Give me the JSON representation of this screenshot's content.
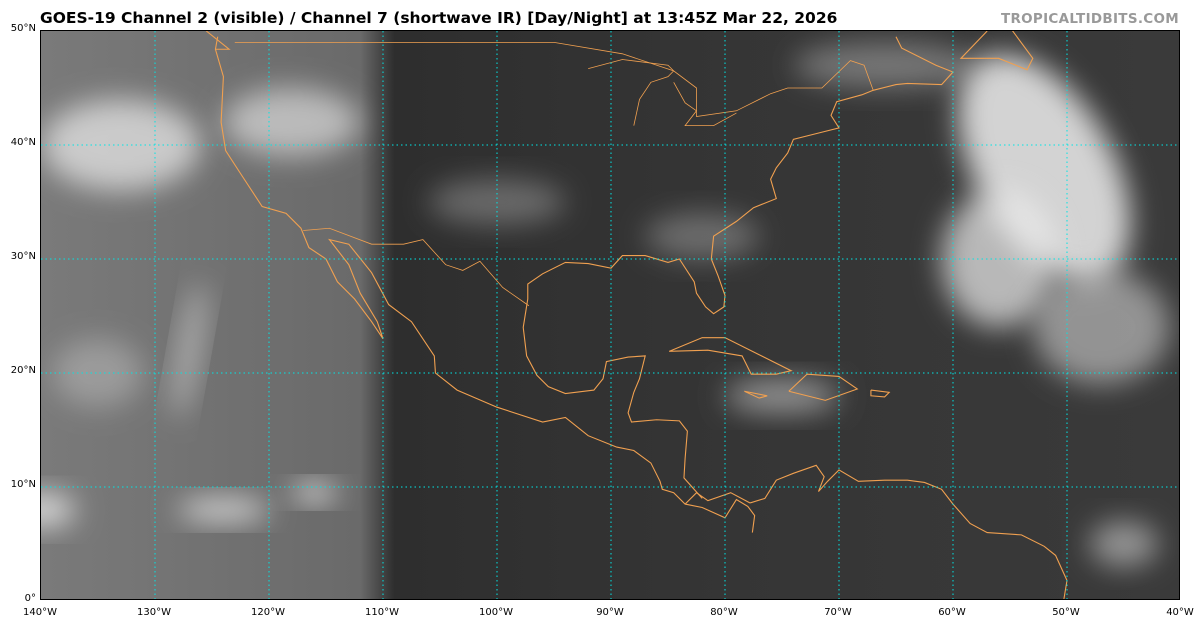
{
  "title": "GOES-19 Channel 2 (visible) / Channel 7 (shortwave IR) [Day/Night] at 13:45Z Mar 22, 2026",
  "brand": "TROPICALTIDBITS.COM",
  "map": {
    "extent": {
      "lon": [
        -140,
        -40
      ],
      "lat": [
        0,
        50
      ]
    },
    "gridline_color": "#00e5e5",
    "coastline_color": "#f0a050",
    "lat_ticks": [
      {
        "value": 0,
        "label": "0°"
      },
      {
        "value": 10,
        "label": "10°N"
      },
      {
        "value": 20,
        "label": "20°N"
      },
      {
        "value": 30,
        "label": "30°N"
      },
      {
        "value": 40,
        "label": "40°N"
      },
      {
        "value": 50,
        "label": "50°N"
      }
    ],
    "lon_ticks": [
      {
        "value": -140,
        "label": "140°W"
      },
      {
        "value": -130,
        "label": "130°W"
      },
      {
        "value": -120,
        "label": "120°W"
      },
      {
        "value": -110,
        "label": "110°W"
      },
      {
        "value": -100,
        "label": "100°W"
      },
      {
        "value": -90,
        "label": "90°W"
      },
      {
        "value": -80,
        "label": "80°W"
      },
      {
        "value": -70,
        "label": "70°W"
      },
      {
        "value": -60,
        "label": "60°W"
      },
      {
        "value": -50,
        "label": "50°W"
      },
      {
        "value": -40,
        "label": "40°W"
      }
    ]
  }
}
